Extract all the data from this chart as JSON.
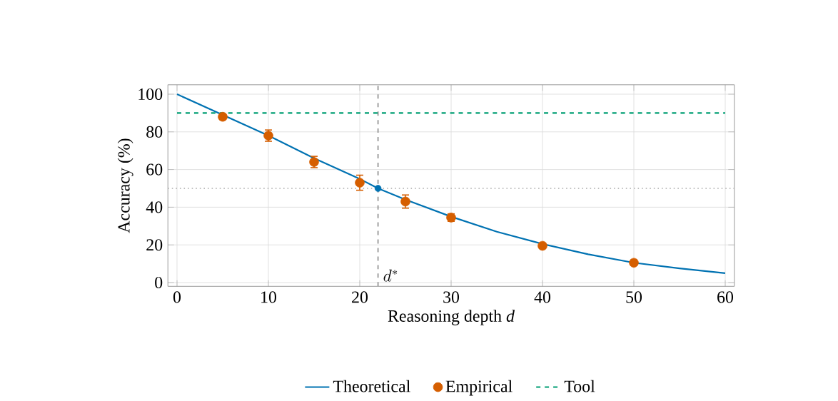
{
  "chart_data": {
    "type": "line",
    "xlabel": "Reasoning depth *d*",
    "ylabel": "Accuracy (%)",
    "xlim": [
      -1,
      61
    ],
    "ylim": [
      -2,
      105
    ],
    "xticks": [
      0,
      10,
      20,
      30,
      40,
      50,
      60
    ],
    "yticks": [
      0,
      20,
      40,
      60,
      80,
      100
    ],
    "grid": true,
    "legend": "bottom",
    "series": [
      {
        "name": "Theoretical",
        "color": "#0072b2",
        "line_style": "solid",
        "marker": "none",
        "x": [
          0,
          5,
          10,
          15,
          20,
          22,
          25,
          30,
          35,
          40,
          45,
          50,
          55,
          60
        ],
        "values": [
          100,
          89,
          78,
          66,
          55,
          50,
          44,
          35,
          27,
          20.5,
          15,
          10.5,
          7.5,
          5
        ]
      },
      {
        "name": "Empirical",
        "type": "scatter",
        "color": "#d55e00",
        "marker": "circle",
        "x": [
          5,
          10,
          15,
          20,
          25,
          30,
          40,
          50
        ],
        "values": [
          88,
          78,
          64,
          53,
          43,
          34.5,
          19.5,
          10.5
        ],
        "errors": [
          1.5,
          3,
          3,
          4,
          3.5,
          2,
          1.5,
          1.5
        ]
      },
      {
        "name": "Tool",
        "type": "line",
        "color": "#009e73",
        "line_style": "dashed",
        "marker": "none",
        "x": [
          0,
          60
        ],
        "values": [
          90,
          90
        ]
      },
      {
        "type": "scatter",
        "color": "#0072b2",
        "marker": "circle",
        "x": [
          22
        ],
        "values": [
          50
        ]
      }
    ],
    "ref_lines": [
      {
        "axis": "y",
        "value": 50,
        "color": "#aaaaaa",
        "line_style": "dotted"
      },
      {
        "axis": "x",
        "value": 22,
        "label": "d^*",
        "color": "#888888",
        "line_style": "dashed"
      }
    ]
  }
}
